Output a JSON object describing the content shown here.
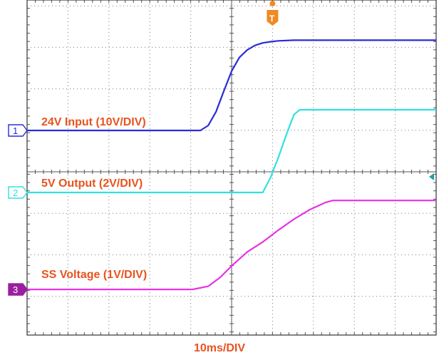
{
  "chart_data": {
    "type": "line",
    "xlabel": "10ms/DIV",
    "x_unit": "ms",
    "x_range": [
      -2.5,
      102.5
    ],
    "trigger_x": 60.5,
    "grid": true,
    "series": [
      {
        "name": "24V Input (10V/DIV)",
        "channel": "1",
        "color": "#2b2bd6",
        "points": [
          [
            -2.5,
            0
          ],
          [
            42,
            0
          ],
          [
            44,
            1.2
          ],
          [
            46,
            4.5
          ],
          [
            48,
            9.5
          ],
          [
            50,
            14.3
          ],
          [
            52,
            17.6
          ],
          [
            54,
            19.4
          ],
          [
            56,
            20.5
          ],
          [
            58,
            21.1
          ],
          [
            60,
            21.4
          ],
          [
            62,
            21.6
          ],
          [
            66,
            21.75
          ],
          [
            102.5,
            21.75
          ]
        ]
      },
      {
        "name": "5V Output (2V/DIV)",
        "channel": "2",
        "color": "#33e0e0",
        "points": [
          [
            -2.5,
            0
          ],
          [
            58,
            0
          ],
          [
            60,
            0.95
          ],
          [
            62,
            2.2
          ],
          [
            64,
            3.6
          ],
          [
            66,
            4.9
          ],
          [
            67.5,
            5.2
          ],
          [
            102.5,
            5.2
          ]
        ]
      },
      {
        "name": "SS Voltage (1V/DIV)",
        "channel": "3",
        "color": "#e632e6",
        "points": [
          [
            -2.5,
            0
          ],
          [
            40,
            0
          ],
          [
            44,
            0.1
          ],
          [
            47,
            0.38
          ],
          [
            50,
            0.75
          ],
          [
            54,
            1.2
          ],
          [
            58,
            1.52
          ],
          [
            62,
            1.9
          ],
          [
            66,
            2.25
          ],
          [
            70,
            2.55
          ],
          [
            74,
            2.78
          ],
          [
            76,
            2.85
          ],
          [
            102.5,
            2.85
          ]
        ]
      }
    ]
  }
}
